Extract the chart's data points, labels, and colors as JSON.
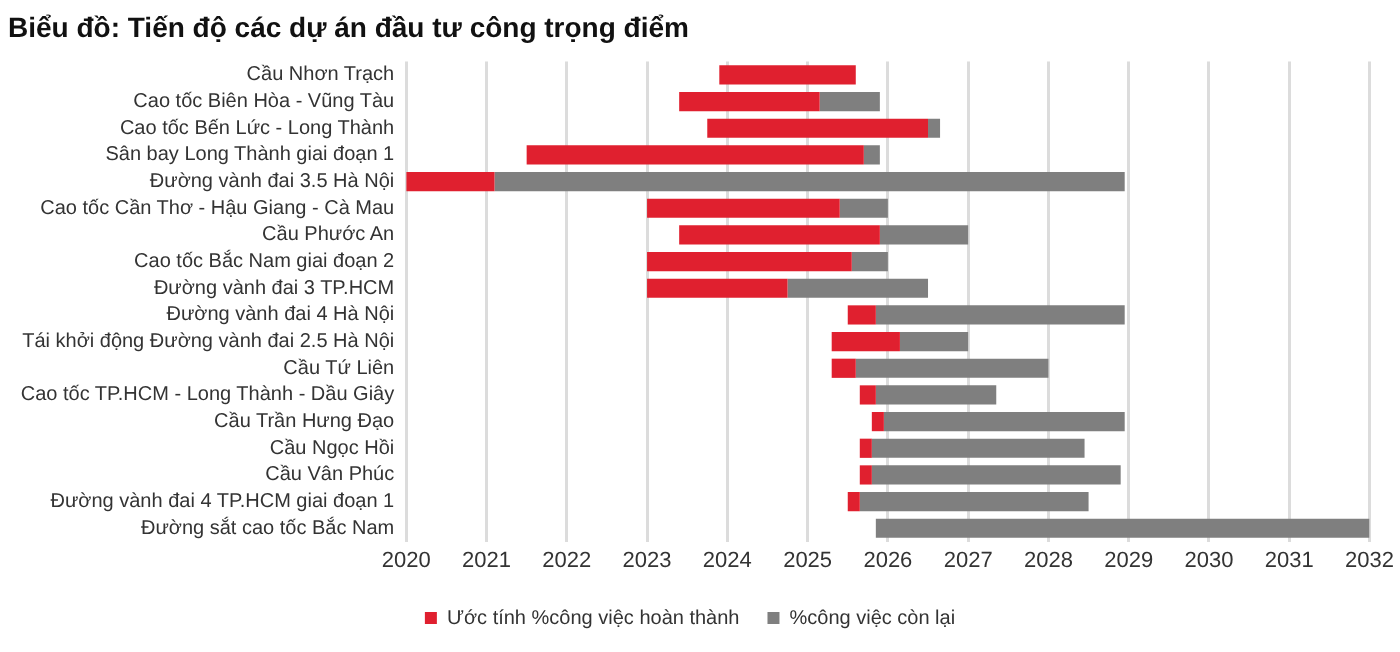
{
  "chart_data": {
    "type": "bar",
    "title": "Biểu đồ: Tiến độ các dự án đầu tư công trọng điểm",
    "orientation": "horizontal",
    "categories": [
      "Cầu Nhơn Trạch",
      "Cao tốc Biên Hòa - Vũng Tàu",
      "Cao tốc Bến Lức - Long Thành",
      "Sân bay Long Thành giai đoạn 1",
      "Đường vành đai 3.5 Hà Nội",
      "Cao tốc Cần Thơ - Hậu Giang - Cà Mau",
      "Cầu Phước An",
      "Cao tốc Bắc Nam giai đoạn 2",
      "Đường vành đai 3 TP.HCM",
      "Đường vành đai 4 Hà Nội",
      "Tái khởi động Đường vành đai 2.5 Hà Nội",
      "Cầu Tứ Liên",
      "Cao tốc TP.HCM - Long Thành - Dầu Giây",
      "Cầu Trần Hưng Đạo",
      "Cầu Ngọc Hồi",
      "Cầu Vân Phúc",
      "Đường vành đai 4 TP.HCM giai đoạn 1",
      "Đường sắt cao tốc Bắc Nam"
    ],
    "series": [
      {
        "name": "Ước tính %công việc hoàn thành",
        "color": "#e0202f",
        "base": [
          2023.9,
          2023.4,
          2023.75,
          2021.5,
          2020,
          2023,
          2023.4,
          2023,
          2023,
          2025.5,
          2025.3,
          2025.3,
          2025.65,
          2025.8,
          2025.65,
          2025.65,
          2025.5,
          null
        ],
        "values": [
          1.7,
          1.75,
          2.75,
          4.2,
          1.1,
          2.4,
          2.5,
          2.55,
          1.75,
          0.35,
          0.85,
          0.3,
          0.2,
          0.15,
          0.15,
          0.15,
          0.15,
          null
        ]
      },
      {
        "name": "%công việc còn lại",
        "color": "#7f7f7f",
        "base": [
          null,
          2025.15,
          2026.5,
          2025.7,
          2021.1,
          2025.4,
          2025.9,
          2025.55,
          2024.75,
          2025.85,
          2026.15,
          2025.6,
          2025.85,
          2025.95,
          2025.8,
          2025.8,
          2025.65,
          2025.85
        ],
        "values": [
          null,
          0.75,
          0.15,
          0.2,
          7.85,
          0.6,
          1.1,
          0.45,
          1.75,
          3.1,
          0.85,
          2.4,
          1.5,
          3,
          2.65,
          3.1,
          2.85,
          6.15
        ]
      }
    ],
    "xlim": [
      2020,
      2032
    ],
    "xticks": [
      2020,
      2021,
      2022,
      2023,
      2024,
      2025,
      2026,
      2027,
      2028,
      2029,
      2030,
      2031,
      2032
    ],
    "grid": "x",
    "legend": "bottom"
  }
}
